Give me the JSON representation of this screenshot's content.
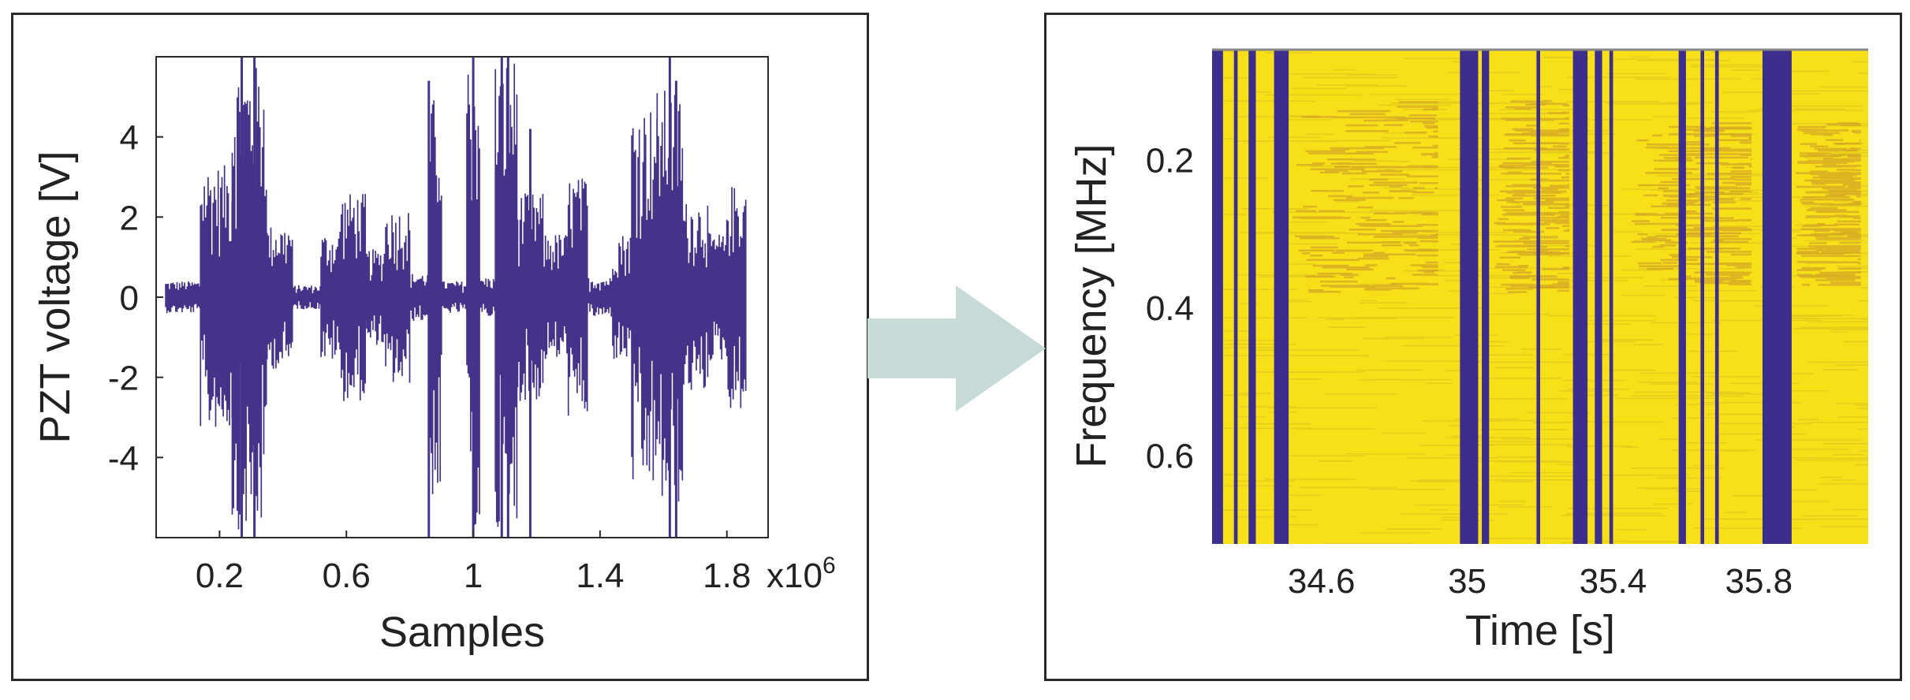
{
  "colors": {
    "signal": "#45338a",
    "spectrogram_high": "#f7e018",
    "spectrogram_mid": "#c8902a",
    "spectrogram_low": "#3b2e8c",
    "arrow": "#c6dad8",
    "frame": "#2a2a2a"
  },
  "chart_data": [
    {
      "type": "line",
      "title": "",
      "xlabel": "Samples",
      "ylabel": "PZT voltage [V]",
      "x_multiplier_label": "x10",
      "x_multiplier_exp": "6",
      "xlim": [
        0,
        1.93
      ],
      "ylim": [
        -6,
        6
      ],
      "x_ticks": [
        0.2,
        0.6,
        1,
        1.4,
        1.8
      ],
      "x_tick_labels": [
        "0.2",
        "0.6",
        "1",
        "1.4",
        "1.8"
      ],
      "y_ticks": [
        4,
        2,
        0,
        -2,
        -4
      ],
      "y_tick_labels": [
        "4",
        "2",
        "0",
        "-2",
        "-4"
      ],
      "series": [
        {
          "name": "PZT voltage",
          "envelope_segments": [
            {
              "x_start": 0.03,
              "x_end": 0.14,
              "amp": 0.4
            },
            {
              "x_start": 0.14,
              "x_end": 0.24,
              "amp": 3.3
            },
            {
              "x_start": 0.24,
              "x_end": 0.35,
              "amp": 5.8
            },
            {
              "x_start": 0.35,
              "x_end": 0.43,
              "amp": 1.8
            },
            {
              "x_start": 0.43,
              "x_end": 0.52,
              "amp": 0.3
            },
            {
              "x_start": 0.52,
              "x_end": 0.58,
              "amp": 1.6
            },
            {
              "x_start": 0.58,
              "x_end": 0.66,
              "amp": 2.6
            },
            {
              "x_start": 0.66,
              "x_end": 0.72,
              "amp": 1.2
            },
            {
              "x_start": 0.72,
              "x_end": 0.8,
              "amp": 2.2
            },
            {
              "x_start": 0.8,
              "x_end": 0.86,
              "amp": 0.6
            },
            {
              "x_start": 0.86,
              "x_end": 0.9,
              "amp": 5.0
            },
            {
              "x_start": 0.9,
              "x_end": 0.98,
              "amp": 0.4
            },
            {
              "x_start": 0.98,
              "x_end": 1.02,
              "amp": 6.0
            },
            {
              "x_start": 1.02,
              "x_end": 1.07,
              "amp": 0.5
            },
            {
              "x_start": 1.07,
              "x_end": 1.14,
              "amp": 6.0
            },
            {
              "x_start": 1.14,
              "x_end": 1.22,
              "amp": 2.6
            },
            {
              "x_start": 1.22,
              "x_end": 1.3,
              "amp": 1.6
            },
            {
              "x_start": 1.3,
              "x_end": 1.36,
              "amp": 3.0
            },
            {
              "x_start": 1.36,
              "x_end": 1.44,
              "amp": 0.5
            },
            {
              "x_start": 1.44,
              "x_end": 1.5,
              "amp": 1.6
            },
            {
              "x_start": 1.5,
              "x_end": 1.58,
              "amp": 4.8
            },
            {
              "x_start": 1.58,
              "x_end": 1.66,
              "amp": 5.2
            },
            {
              "x_start": 1.66,
              "x_end": 1.74,
              "amp": 2.4
            },
            {
              "x_start": 1.74,
              "x_end": 1.8,
              "amp": 1.6
            },
            {
              "x_start": 1.8,
              "x_end": 1.86,
              "amp": 2.8
            }
          ],
          "spikes": [
            {
              "x": 0.27,
              "y_min": -6,
              "y_max": 6
            },
            {
              "x": 0.31,
              "y_min": -6,
              "y_max": 6
            },
            {
              "x": 0.86,
              "y_min": -6,
              "y_max": 5.4
            },
            {
              "x": 1.0,
              "y_min": -6,
              "y_max": 6
            },
            {
              "x": 1.09,
              "y_min": -6,
              "y_max": 6
            },
            {
              "x": 1.11,
              "y_min": -6,
              "y_max": 6
            },
            {
              "x": 1.18,
              "y_min": -6,
              "y_max": 4.2
            },
            {
              "x": 1.62,
              "y_min": -6,
              "y_max": 6
            },
            {
              "x": 1.64,
              "y_min": -6,
              "y_max": 5.4
            }
          ]
        }
      ]
    },
    {
      "type": "heatmap",
      "title": "",
      "xlabel": "Time [s]",
      "ylabel": "Frequency [MHz]",
      "xlim": [
        34.3,
        36.1
      ],
      "ylim": [
        0.05,
        0.72
      ],
      "y_inverted": true,
      "x_ticks": [
        34.6,
        35,
        35.4,
        35.8
      ],
      "x_tick_labels": [
        "34.6",
        "35",
        "35.4",
        "35.8"
      ],
      "y_ticks": [
        0.2,
        0.4,
        0.6
      ],
      "y_tick_labels": [
        "0.2",
        "0.4",
        "0.6"
      ],
      "low_power_bands": [
        {
          "t_start": 34.3,
          "t_end": 34.33
        },
        {
          "t_start": 34.36,
          "t_end": 34.37
        },
        {
          "t_start": 34.4,
          "t_end": 34.42
        },
        {
          "t_start": 34.47,
          "t_end": 34.51
        },
        {
          "t_start": 34.98,
          "t_end": 35.03
        },
        {
          "t_start": 35.04,
          "t_end": 35.06
        },
        {
          "t_start": 35.19,
          "t_end": 35.2
        },
        {
          "t_start": 35.29,
          "t_end": 35.33
        },
        {
          "t_start": 35.35,
          "t_end": 35.37
        },
        {
          "t_start": 35.39,
          "t_end": 35.4
        },
        {
          "t_start": 35.58,
          "t_end": 35.6
        },
        {
          "t_start": 35.64,
          "t_end": 35.65
        },
        {
          "t_start": 35.68,
          "t_end": 35.69
        },
        {
          "t_start": 35.81,
          "t_end": 35.89
        }
      ],
      "high_power_regions": [
        {
          "t_start": 34.52,
          "t_end": 34.92,
          "f_start": 0.12,
          "f_end": 0.38
        },
        {
          "t_start": 35.07,
          "t_end": 35.28,
          "f_start": 0.12,
          "f_end": 0.38
        },
        {
          "t_start": 35.45,
          "t_end": 35.78,
          "f_start": 0.15,
          "f_end": 0.37
        },
        {
          "t_start": 35.9,
          "t_end": 36.08,
          "f_start": 0.15,
          "f_end": 0.37
        }
      ]
    }
  ]
}
